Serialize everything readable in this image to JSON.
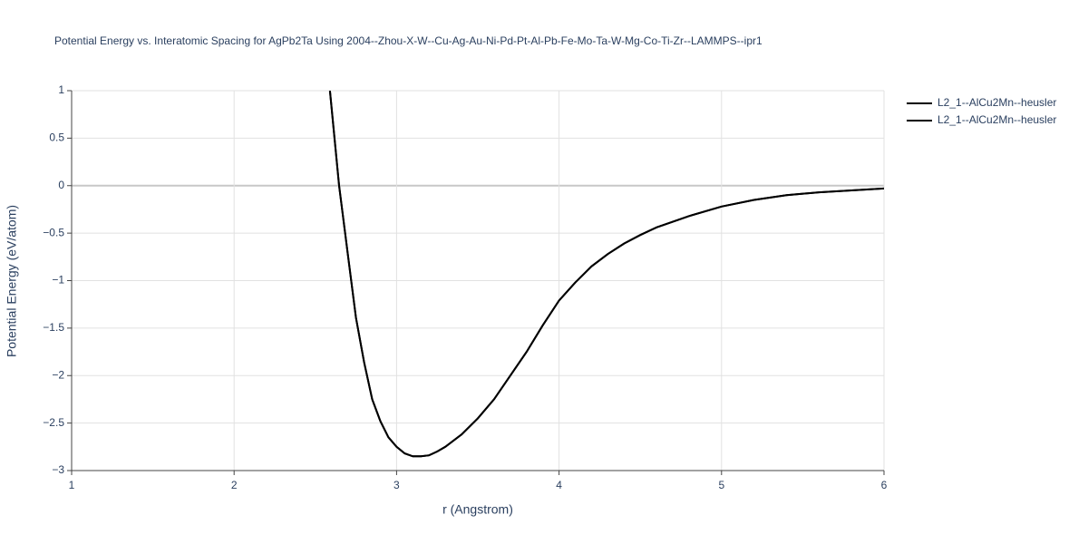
{
  "chart_data": {
    "type": "line",
    "title": "Potential Energy vs. Interatomic Spacing for AgPb2Ta Using 2004--Zhou-X-W--Cu-Ag-Au-Ni-Pd-Pt-Al-Pb-Fe-Mo-Ta-W-Mg-Co-Ti-Zr--LAMMPS--ipr1",
    "x_label": "r (Angstrom)",
    "y_label": "Potential Energy (eV/atom)",
    "x": [
      2.59,
      2.646,
      2.7,
      2.75,
      2.8,
      2.85,
      2.9,
      2.95,
      3.0,
      3.05,
      3.1,
      3.15,
      3.2,
      3.25,
      3.3,
      3.4,
      3.5,
      3.6,
      3.7,
      3.8,
      3.9,
      4.0,
      4.1,
      4.2,
      4.3,
      4.4,
      4.5,
      4.6,
      4.8,
      5.0,
      5.2,
      5.4,
      5.6,
      5.8,
      6.0
    ],
    "series": [
      {
        "name": "L2_1--AlCu2Mn--heusler",
        "color": "#000000",
        "values": [
          1,
          0,
          -0.72,
          -1.39,
          -1.86,
          -2.25,
          -2.48,
          -2.65,
          -2.75,
          -2.82,
          -2.85,
          -2.85,
          -2.84,
          -2.8,
          -2.75,
          -2.62,
          -2.45,
          -2.25,
          -2.0,
          -1.75,
          -1.47,
          -1.21,
          -1.02,
          -0.85,
          -0.72,
          -0.61,
          -0.52,
          -0.44,
          -0.32,
          -0.22,
          -0.15,
          -0.1,
          -0.07,
          -0.05,
          -0.03
        ]
      },
      {
        "name": "L2_1--AlCu2Mn--heusler",
        "color": "#000000",
        "values": [
          1,
          0,
          -0.72,
          -1.39,
          -1.86,
          -2.25,
          -2.48,
          -2.65,
          -2.75,
          -2.82,
          -2.85,
          -2.85,
          -2.84,
          -2.8,
          -2.75,
          -2.62,
          -2.45,
          -2.25,
          -2.0,
          -1.75,
          -1.47,
          -1.21,
          -1.02,
          -0.85,
          -0.72,
          -0.61,
          -0.52,
          -0.44,
          -0.32,
          -0.22,
          -0.15,
          -0.1,
          -0.07,
          -0.05,
          -0.03
        ]
      }
    ],
    "xlim": [
      1,
      6
    ],
    "xticks": [
      1,
      2,
      3,
      4,
      5,
      6
    ],
    "ylim": [
      -3,
      1
    ],
    "yticks": [
      {
        "value": -3,
        "label": "−3"
      },
      {
        "value": -2.5,
        "label": "−2.5"
      },
      {
        "value": -2,
        "label": "−2"
      },
      {
        "value": -1.5,
        "label": "−1.5"
      },
      {
        "value": -1,
        "label": "−1"
      },
      {
        "value": -0.5,
        "label": "−0.5"
      },
      0,
      0.5,
      1
    ],
    "grid": true,
    "legend": "right"
  }
}
